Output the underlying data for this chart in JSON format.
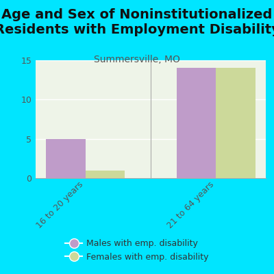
{
  "title": "Age and Sex of Noninstitutionalized\nResidents with Employment Disability",
  "subtitle": "Summersville, MO",
  "categories": [
    "16 to 20 years",
    "21 to 64 years"
  ],
  "male_values": [
    5,
    14
  ],
  "female_values": [
    1,
    14
  ],
  "male_color": "#bf9cc9",
  "female_color": "#ccd99a",
  "background_color": "#00e5ff",
  "plot_bg_color": "#eef4e8",
  "ylim": [
    0,
    15
  ],
  "yticks": [
    0,
    5,
    10,
    15
  ],
  "bar_width": 0.3,
  "title_fontsize": 14,
  "subtitle_fontsize": 10,
  "tick_fontsize": 9,
  "legend_labels": [
    "Males with emp. disability",
    "Females with emp. disability"
  ],
  "legend_fontsize": 9
}
